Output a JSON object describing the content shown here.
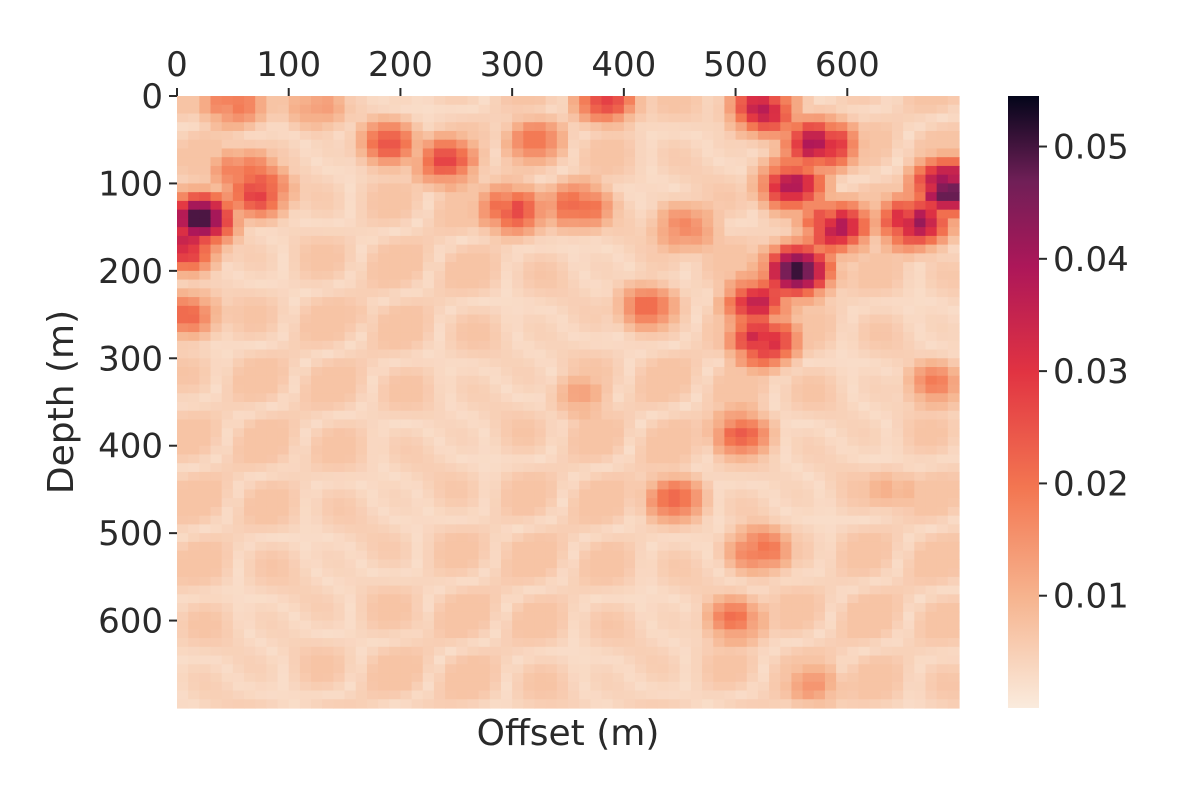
{
  "chart_data": {
    "type": "heatmap",
    "title": "",
    "xlabel": "Offset (m)",
    "ylabel": "Depth (m)",
    "x_axis_position": "top",
    "xlim": [
      0,
      700
    ],
    "ylim": [
      700,
      0
    ],
    "x_ticks": [
      0,
      100,
      200,
      300,
      400,
      500,
      600
    ],
    "y_ticks": [
      0,
      100,
      200,
      300,
      400,
      500,
      600
    ],
    "x_tick_labels": [
      "0",
      "100",
      "200",
      "300",
      "400",
      "500",
      "600"
    ],
    "y_tick_labels": [
      "0",
      "100",
      "200",
      "300",
      "400",
      "500",
      "600"
    ],
    "grid": false,
    "grid_cells": [
      70,
      70
    ],
    "colorbar": {
      "colormap": "rocket_r",
      "min": 0.0,
      "max": 0.0545,
      "ticks": [
        0.01,
        0.02,
        0.03,
        0.04,
        0.05
      ],
      "tick_labels": [
        "0.01",
        "0.02",
        "0.03",
        "0.04",
        "0.05"
      ],
      "placement": "right"
    },
    "hotspots": [
      {
        "x": 20,
        "y": 140,
        "value": 0.052
      },
      {
        "x": 5,
        "y": 170,
        "value": 0.045
      },
      {
        "x": 70,
        "y": 110,
        "value": 0.036
      },
      {
        "x": 60,
        "y": 90,
        "value": 0.025
      },
      {
        "x": 10,
        "y": 250,
        "value": 0.024
      },
      {
        "x": 50,
        "y": 10,
        "value": 0.022
      },
      {
        "x": 125,
        "y": 15,
        "value": 0.016
      },
      {
        "x": 190,
        "y": 55,
        "value": 0.025
      },
      {
        "x": 240,
        "y": 75,
        "value": 0.028
      },
      {
        "x": 300,
        "y": 130,
        "value": 0.028
      },
      {
        "x": 320,
        "y": 50,
        "value": 0.02
      },
      {
        "x": 360,
        "y": 125,
        "value": 0.026
      },
      {
        "x": 385,
        "y": 5,
        "value": 0.028
      },
      {
        "x": 455,
        "y": 150,
        "value": 0.022
      },
      {
        "x": 525,
        "y": 15,
        "value": 0.04
      },
      {
        "x": 575,
        "y": 55,
        "value": 0.043
      },
      {
        "x": 550,
        "y": 100,
        "value": 0.04
      },
      {
        "x": 590,
        "y": 150,
        "value": 0.04
      },
      {
        "x": 555,
        "y": 200,
        "value": 0.052
      },
      {
        "x": 520,
        "y": 235,
        "value": 0.036
      },
      {
        "x": 525,
        "y": 280,
        "value": 0.038
      },
      {
        "x": 660,
        "y": 145,
        "value": 0.043
      },
      {
        "x": 690,
        "y": 105,
        "value": 0.054
      },
      {
        "x": 420,
        "y": 240,
        "value": 0.022
      },
      {
        "x": 505,
        "y": 385,
        "value": 0.024
      },
      {
        "x": 445,
        "y": 460,
        "value": 0.022
      },
      {
        "x": 520,
        "y": 520,
        "value": 0.024
      },
      {
        "x": 500,
        "y": 600,
        "value": 0.022
      },
      {
        "x": 680,
        "y": 330,
        "value": 0.02
      },
      {
        "x": 360,
        "y": 345,
        "value": 0.014
      },
      {
        "x": 160,
        "y": 250,
        "value": 0.007
      },
      {
        "x": 100,
        "y": 420,
        "value": 0.005
      },
      {
        "x": 300,
        "y": 520,
        "value": 0.006
      },
      {
        "x": 210,
        "y": 600,
        "value": 0.006
      },
      {
        "x": 570,
        "y": 675,
        "value": 0.015
      },
      {
        "x": 640,
        "y": 450,
        "value": 0.012
      },
      {
        "x": 130,
        "y": 670,
        "value": 0.005
      }
    ]
  }
}
